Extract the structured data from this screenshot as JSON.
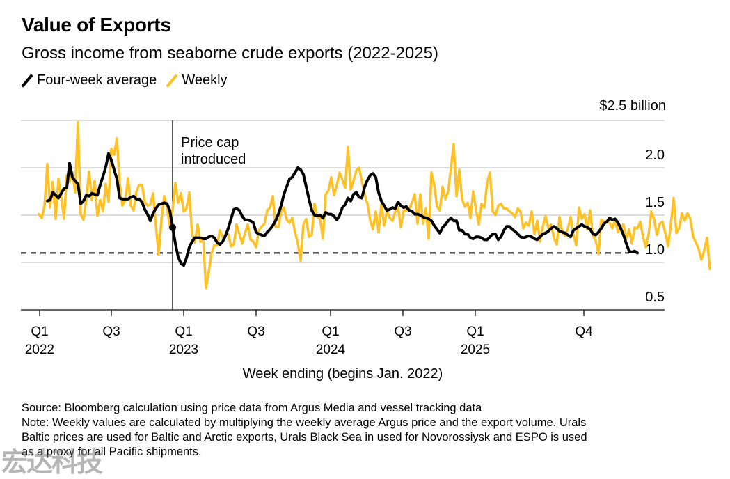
{
  "header": {
    "title": "Value of Exports",
    "subtitle": "Gross income from seaborne crude exports (2022-2025)"
  },
  "legend": [
    {
      "label": "Four-week average",
      "color": "#000000"
    },
    {
      "label": "Weekly",
      "color": "#FFC125"
    }
  ],
  "annotation": {
    "line1": "Price cap",
    "line2": "introduced"
  },
  "footer": {
    "source": "Source: Bloomberg calculation using price data from Argus Media and vessel tracking data",
    "note_line1": "Note: Weekly values are calculated by multiplying the weekly average Argus price and the export volume. Urals",
    "note_line2": "Baltic prices are used for Baltic and Arctic exports, Urals Black Sea in used for Novorossiysk and ESPO is used",
    "note_line3": "as a proxy for all Pacific shipments."
  },
  "watermark": "宏达科技",
  "chart_data": {
    "type": "line",
    "title": "Value of Exports",
    "subtitle": "Gross income from seaborne crude exports (2022-2025)",
    "xlabel": "Week ending (begins Jan. 2022)",
    "ylabel": "$2.5 billion",
    "unit_label": "$2.5 billion",
    "ylim": [
      0.5,
      2.5
    ],
    "yticks": [
      {
        "value": 2.5,
        "label": "$2.5 billion"
      },
      {
        "value": 2.0,
        "label": "2.0"
      },
      {
        "value": 1.5,
        "label": "1.5"
      },
      {
        "value": 1.0,
        "label": "1.0"
      },
      {
        "value": 0.5,
        "label": "0.5"
      }
    ],
    "xticks": [
      {
        "week": 0,
        "line1": "Q1",
        "line2": "2022"
      },
      {
        "week": 26,
        "line1": "Q3",
        "line2": ""
      },
      {
        "week": 52,
        "line1": "Q1",
        "line2": "2023"
      },
      {
        "week": 78,
        "line1": "Q3",
        "line2": ""
      },
      {
        "week": 105,
        "line1": "Q1",
        "line2": "2024"
      },
      {
        "week": 131,
        "line1": "Q3",
        "line2": ""
      },
      {
        "week": 157,
        "line1": "Q1",
        "line2": "2025"
      },
      {
        "week": 196,
        "line1": "Q4",
        "line2": ""
      }
    ],
    "xlim": [
      -6.5,
      225
    ],
    "grid": true,
    "legend_position": "top-left",
    "reference_line": {
      "value": 1.1,
      "style": "dashed",
      "x_end_week": 212
    },
    "event": {
      "week": 48,
      "value": 1.37,
      "label": "Price cap introduced"
    },
    "series": [
      {
        "name": "Weekly",
        "color": "#FFC125",
        "start_week": 0,
        "values": [
          1.51,
          1.47,
          1.6,
          2.04,
          1.58,
          1.85,
          1.46,
          1.88,
          1.69,
          1.46,
          1.92,
          1.85,
          1.95,
          1.74,
          2.48,
          1.51,
          1.45,
          1.66,
          1.96,
          1.66,
          1.86,
          1.49,
          1.66,
          1.54,
          1.83,
          1.64,
          2.2,
          2.14,
          2.31,
          1.83,
          1.6,
          1.66,
          1.89,
          1.6,
          1.55,
          1.75,
          1.82,
          1.82,
          1.64,
          1.6,
          1.61,
          1.73,
          1.39,
          1.08,
          1.45,
          1.7,
          1.58,
          1.38,
          1.55,
          1.84,
          1.63,
          1.73,
          1.54,
          1.57,
          1.74,
          1.3,
          1.21,
          1.4,
          1.22,
          1.24,
          0.73,
          0.9,
          1.1,
          1.18,
          1.18,
          1.34,
          1.26,
          1.3,
          1.3,
          1.17,
          1.19,
          1.4,
          1.3,
          1.2,
          1.31,
          1.4,
          1.24,
          1.22,
          1.16,
          1.34,
          1.38,
          1.41,
          1.55,
          1.58,
          1.7,
          1.38,
          1.37,
          1.54,
          1.58,
          1.45,
          1.42,
          1.47,
          1.32,
          1.2,
          1.02,
          1.4,
          1.46,
          1.27,
          1.29,
          1.62,
          1.48,
          1.46,
          1.25,
          1.72,
          1.76,
          1.9,
          1.71,
          1.82,
          1.95,
          1.87,
          1.79,
          2.22,
          1.77,
          1.86,
          1.97,
          2.0,
          1.86,
          1.72,
          1.62,
          1.44,
          1.35,
          1.54,
          1.32,
          1.61,
          1.39,
          1.54,
          1.47,
          1.44,
          1.54,
          1.58,
          1.37,
          1.55,
          1.55,
          1.56,
          1.63,
          1.72,
          1.41,
          1.72,
          1.41,
          1.57,
          1.25,
          1.95,
          1.82,
          1.59,
          1.55,
          1.8,
          1.67,
          1.75,
          2.0,
          2.25,
          1.7,
          1.98,
          1.67,
          1.59,
          1.63,
          1.47,
          1.75,
          1.56,
          1.4,
          1.62,
          1.58,
          1.84,
          1.95,
          1.54,
          1.5,
          1.6,
          1.62,
          1.57,
          1.57,
          1.54,
          1.52,
          1.48,
          1.57,
          1.54,
          1.36,
          1.42,
          1.39,
          1.54,
          1.3,
          1.44,
          1.22,
          1.38,
          1.49,
          1.36,
          1.4,
          1.26,
          1.19,
          1.48,
          1.32,
          1.28,
          1.36,
          1.48,
          1.3,
          1.18,
          1.58,
          1.46,
          1.51,
          1.35,
          1.55,
          1.28,
          1.23,
          1.09,
          1.45,
          1.43,
          1.43,
          1.42,
          1.36,
          1.45,
          1.32,
          1.36,
          1.4,
          1.25,
          1.35,
          1.2,
          1.37,
          1.36,
          1.43,
          1.27,
          1.16,
          1.3,
          1.54,
          1.45,
          1.29,
          1.41,
          1.43,
          1.31,
          1.17,
          1.4,
          1.68,
          1.31,
          1.36,
          1.52,
          1.44,
          1.52,
          1.46,
          1.27,
          1.21,
          1.14,
          1.03,
          1.13,
          1.26,
          0.93
        ]
      },
      {
        "name": "Four-week average",
        "color": "#000000",
        "start_week": 3,
        "values": [
          1.65,
          1.66,
          1.74,
          1.71,
          1.68,
          1.73,
          1.78,
          1.79,
          2.05,
          1.9,
          1.86,
          1.83,
          1.62,
          1.65,
          1.71,
          1.7,
          1.73,
          1.72,
          1.71,
          1.82,
          1.91,
          2.01,
          2.15,
          2.08,
          1.98,
          1.88,
          1.68,
          1.67,
          1.67,
          1.67,
          1.69,
          1.7,
          1.67,
          1.67,
          1.64,
          1.56,
          1.51,
          1.44,
          1.52,
          1.57,
          1.61,
          1.62,
          1.63,
          1.62,
          1.55,
          1.37,
          1.2,
          1.06,
          0.99,
          0.97,
          1.05,
          1.16,
          1.22,
          1.26,
          1.26,
          1.26,
          1.25,
          1.25,
          1.27,
          1.28,
          1.26,
          1.21,
          1.19,
          1.22,
          1.28,
          1.36,
          1.46,
          1.56,
          1.57,
          1.55,
          1.49,
          1.45,
          1.45,
          1.44,
          1.42,
          1.32,
          1.3,
          1.29,
          1.28,
          1.32,
          1.35,
          1.39,
          1.44,
          1.51,
          1.6,
          1.72,
          1.8,
          1.88,
          1.9,
          1.95,
          2.0,
          1.98,
          1.93,
          1.8,
          1.67,
          1.55,
          1.5,
          1.5,
          1.5,
          1.47,
          1.53,
          1.51,
          1.51,
          1.49,
          1.45,
          1.5,
          1.58,
          1.61,
          1.68,
          1.65,
          1.72,
          1.74,
          1.69,
          1.68,
          1.8,
          1.87,
          1.92,
          1.94,
          1.9,
          1.74,
          1.65,
          1.6,
          1.55,
          1.56,
          1.58,
          1.57,
          1.64,
          1.6,
          1.58,
          1.59,
          1.55,
          1.54,
          1.51,
          1.51,
          1.5,
          1.48,
          1.47,
          1.46,
          1.44,
          1.39,
          1.35,
          1.31,
          1.37,
          1.4,
          1.44,
          1.47,
          1.44,
          1.44,
          1.34,
          1.34,
          1.3,
          1.3,
          1.26,
          1.25,
          1.27,
          1.27,
          1.26,
          1.24,
          1.24,
          1.27,
          1.3,
          1.3,
          1.24,
          1.27,
          1.34,
          1.38,
          1.38,
          1.35,
          1.33,
          1.3,
          1.27,
          1.26,
          1.27,
          1.28,
          1.27,
          1.25,
          1.24,
          1.27,
          1.3,
          1.31,
          1.33,
          1.36,
          1.38,
          1.36,
          1.33,
          1.32,
          1.31,
          1.29,
          1.27,
          1.34,
          1.36,
          1.38,
          1.4,
          1.38,
          1.37,
          1.35,
          1.3,
          1.29,
          1.32,
          1.36,
          1.41,
          1.43,
          1.47,
          1.45,
          1.46,
          1.42,
          1.36,
          1.29,
          1.2,
          1.12,
          1.11,
          1.12,
          1.1
        ]
      }
    ]
  }
}
